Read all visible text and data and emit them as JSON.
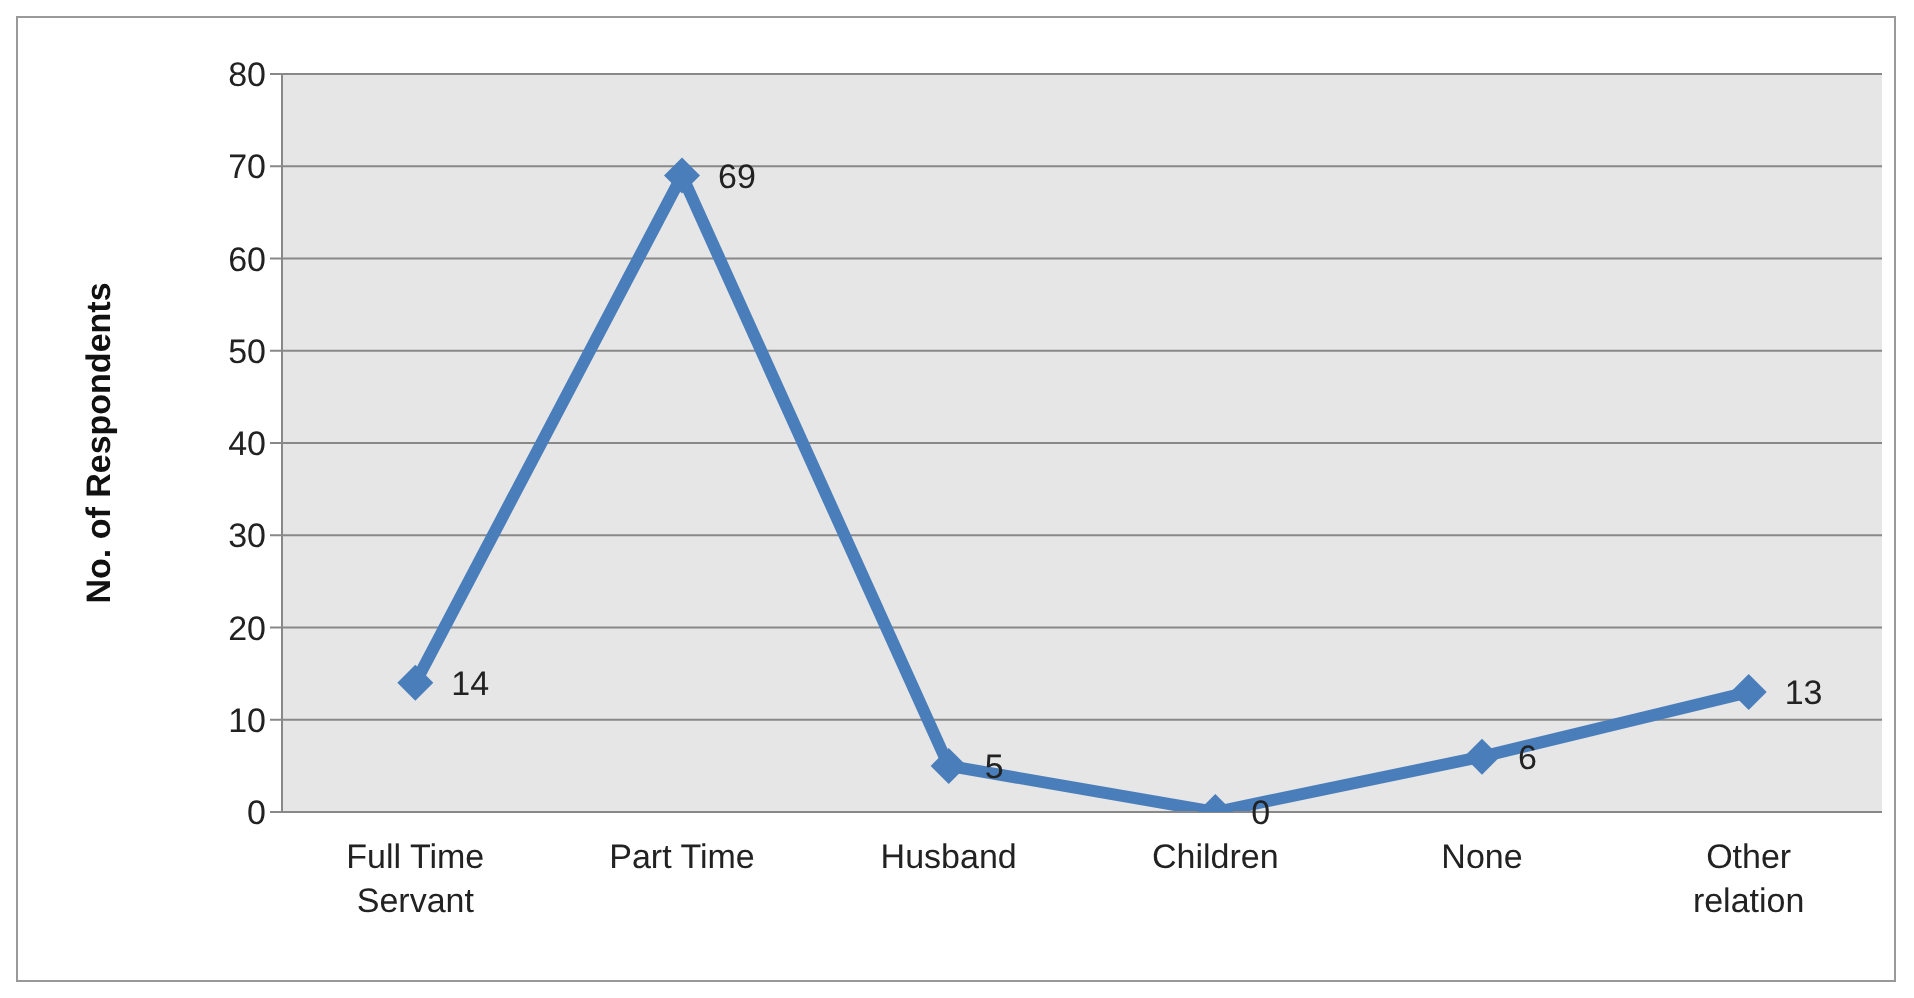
{
  "chart_data": {
    "type": "line",
    "ylabel": "No. of Respondents",
    "categories": [
      "Full Time Servant",
      "Part Time",
      "Husband",
      "Children",
      "None",
      "Other relation"
    ],
    "values": [
      14,
      69,
      5,
      0,
      6,
      13
    ],
    "color": "#4a7ebb",
    "ylim": [
      0,
      80
    ],
    "yticks": [
      0,
      10,
      20,
      30,
      40,
      50,
      60,
      70,
      80
    ],
    "grid": "y",
    "marker": "diamond",
    "line_style": "solid",
    "data_labels": true
  }
}
